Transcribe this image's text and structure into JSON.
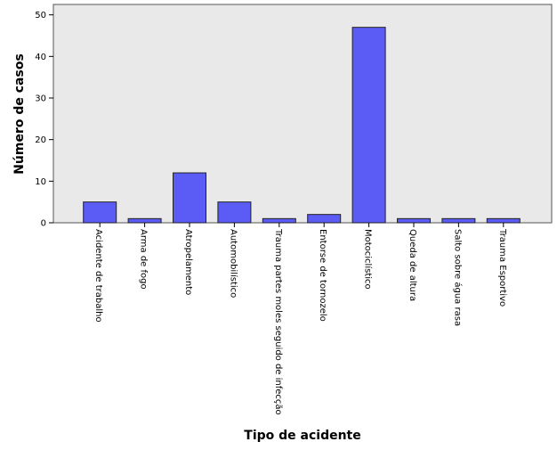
{
  "chart_data": {
    "type": "bar",
    "x_label": "Tipo de acidente",
    "y_label": "Número de casos",
    "categories": [
      "Acidente de trabalho",
      "Arma de fogo",
      "Atropelamento",
      "Automobilístico",
      "Trauma partes moles seguido de infecção",
      "Entorse de tornozelo",
      "Motociclístico",
      "Queda de altura",
      "Salto sobre água rasa",
      "Trauma Esportivo"
    ],
    "values": [
      5,
      1,
      12,
      5,
      1,
      2,
      47,
      1,
      1,
      1
    ],
    "color": "#5b5bf5",
    "ylim": [
      0,
      52.5
    ],
    "yticks": [
      0,
      10,
      20,
      30,
      40,
      50
    ]
  }
}
